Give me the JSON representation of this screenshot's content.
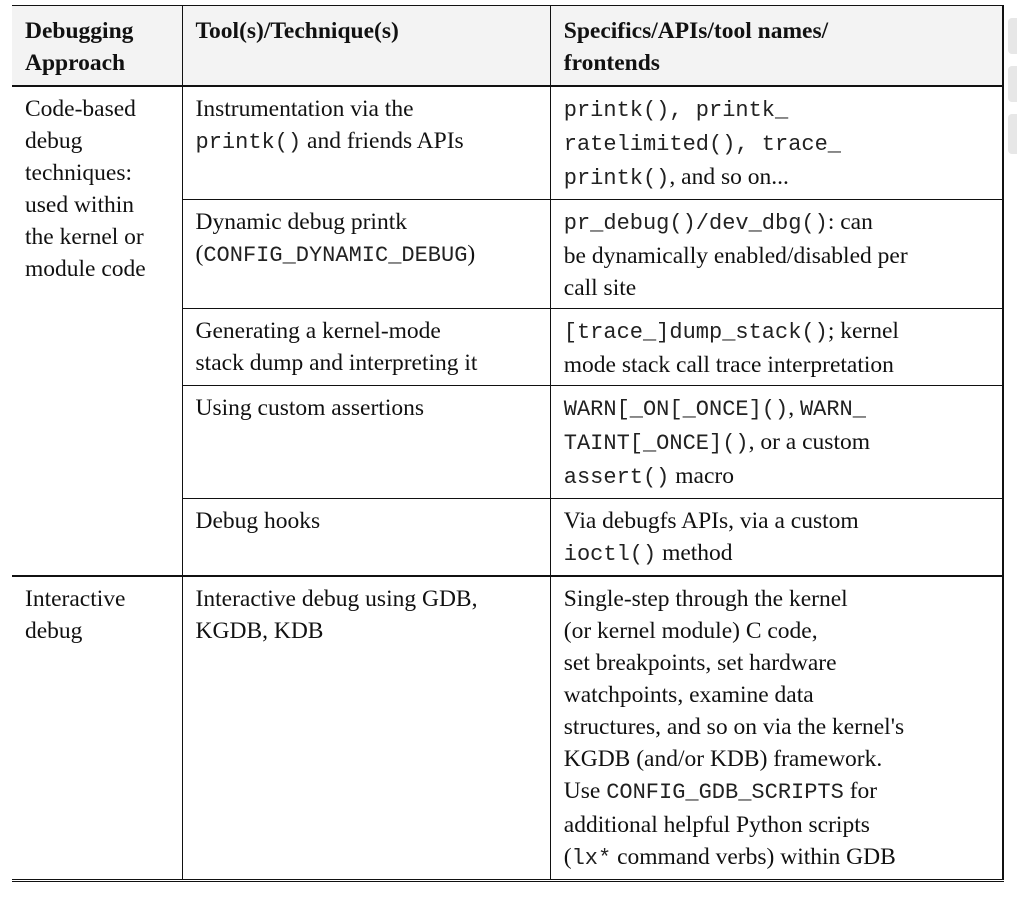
{
  "table": {
    "headers": {
      "approach": [
        "Debugging",
        "Approach"
      ],
      "tool": [
        "Tool(s)/Technique(s)"
      ],
      "spec": [
        "Specifics/APIs/tool names/",
        "frontends"
      ]
    },
    "groups": [
      {
        "approach": [
          "Code-based",
          "debug",
          "techniques:",
          "used within",
          "the kernel or",
          "module code"
        ],
        "rows": [
          {
            "tool": [
              [
                {
                  "t": "Instrumentation via the"
                }
              ],
              [
                {
                  "t": "printk()",
                  "m": true
                },
                {
                  "t": " and friends APIs"
                }
              ]
            ],
            "spec": [
              [
                {
                  "t": "printk(), printk_",
                  "m": true
                }
              ],
              [
                {
                  "t": "ratelimited(), trace_",
                  "m": true
                }
              ],
              [
                {
                  "t": "printk()",
                  "m": true
                },
                {
                  "t": ", and so on..."
                }
              ]
            ]
          },
          {
            "tool": [
              [
                {
                  "t": "Dynamic debug printk"
                }
              ],
              [
                {
                  "t": "("
                },
                {
                  "t": "CONFIG_DYNAMIC_DEBUG",
                  "m": true
                },
                {
                  "t": ")"
                }
              ]
            ],
            "spec": [
              [
                {
                  "t": "pr_debug()/dev_dbg()",
                  "m": true
                },
                {
                  "t": ": can"
                }
              ],
              [
                {
                  "t": "be dynamically enabled/disabled per"
                }
              ],
              [
                {
                  "t": "call site"
                }
              ]
            ]
          },
          {
            "tool": [
              [
                {
                  "t": "Generating a kernel-mode"
                }
              ],
              [
                {
                  "t": "stack dump and interpreting it"
                }
              ]
            ],
            "spec": [
              [
                {
                  "t": "[trace_]dump_stack()",
                  "m": true
                },
                {
                  "t": "; kernel"
                }
              ],
              [
                {
                  "t": "mode stack call trace interpretation"
                }
              ]
            ]
          },
          {
            "tool": [
              [
                {
                  "t": "Using custom assertions"
                }
              ]
            ],
            "spec": [
              [
                {
                  "t": "WARN[_ON[_ONCE]()",
                  "m": true
                },
                {
                  "t": ", "
                },
                {
                  "t": "WARN_",
                  "m": true
                }
              ],
              [
                {
                  "t": "TAINT[_ONCE]()",
                  "m": true
                },
                {
                  "t": ", or a custom"
                }
              ],
              [
                {
                  "t": "assert()",
                  "m": true
                },
                {
                  "t": " macro"
                }
              ]
            ]
          },
          {
            "tool": [
              [
                {
                  "t": "Debug hooks"
                }
              ]
            ],
            "spec": [
              [
                {
                  "t": "Via debugfs APIs, via a custom"
                }
              ],
              [
                {
                  "t": "ioctl()",
                  "m": true
                },
                {
                  "t": " method"
                }
              ]
            ]
          }
        ]
      },
      {
        "approach": [
          "Interactive",
          "debug"
        ],
        "rows": [
          {
            "tool": [
              [
                {
                  "t": "Interactive debug using GDB,"
                }
              ],
              [
                {
                  "t": "KGDB, KDB"
                }
              ]
            ],
            "spec": [
              [
                {
                  "t": "Single-step through the kernel"
                }
              ],
              [
                {
                  "t": "(or kernel module) C code,"
                }
              ],
              [
                {
                  "t": "set breakpoints, set hardware"
                }
              ],
              [
                {
                  "t": "watchpoints, examine data"
                }
              ],
              [
                {
                  "t": "structures, and so on via the kernel's"
                }
              ],
              [
                {
                  "t": "KGDB (and/or KDB) framework."
                }
              ],
              [
                {
                  "t": "Use "
                },
                {
                  "t": "CONFIG_GDB_SCRIPTS",
                  "m": true
                },
                {
                  "t": " for"
                }
              ],
              [
                {
                  "t": "additional helpful Python scripts"
                }
              ],
              [
                {
                  "t": "("
                },
                {
                  "t": "lx*",
                  "m": true
                },
                {
                  "t": " command verbs) within GDB"
                }
              ]
            ]
          }
        ]
      }
    ]
  }
}
